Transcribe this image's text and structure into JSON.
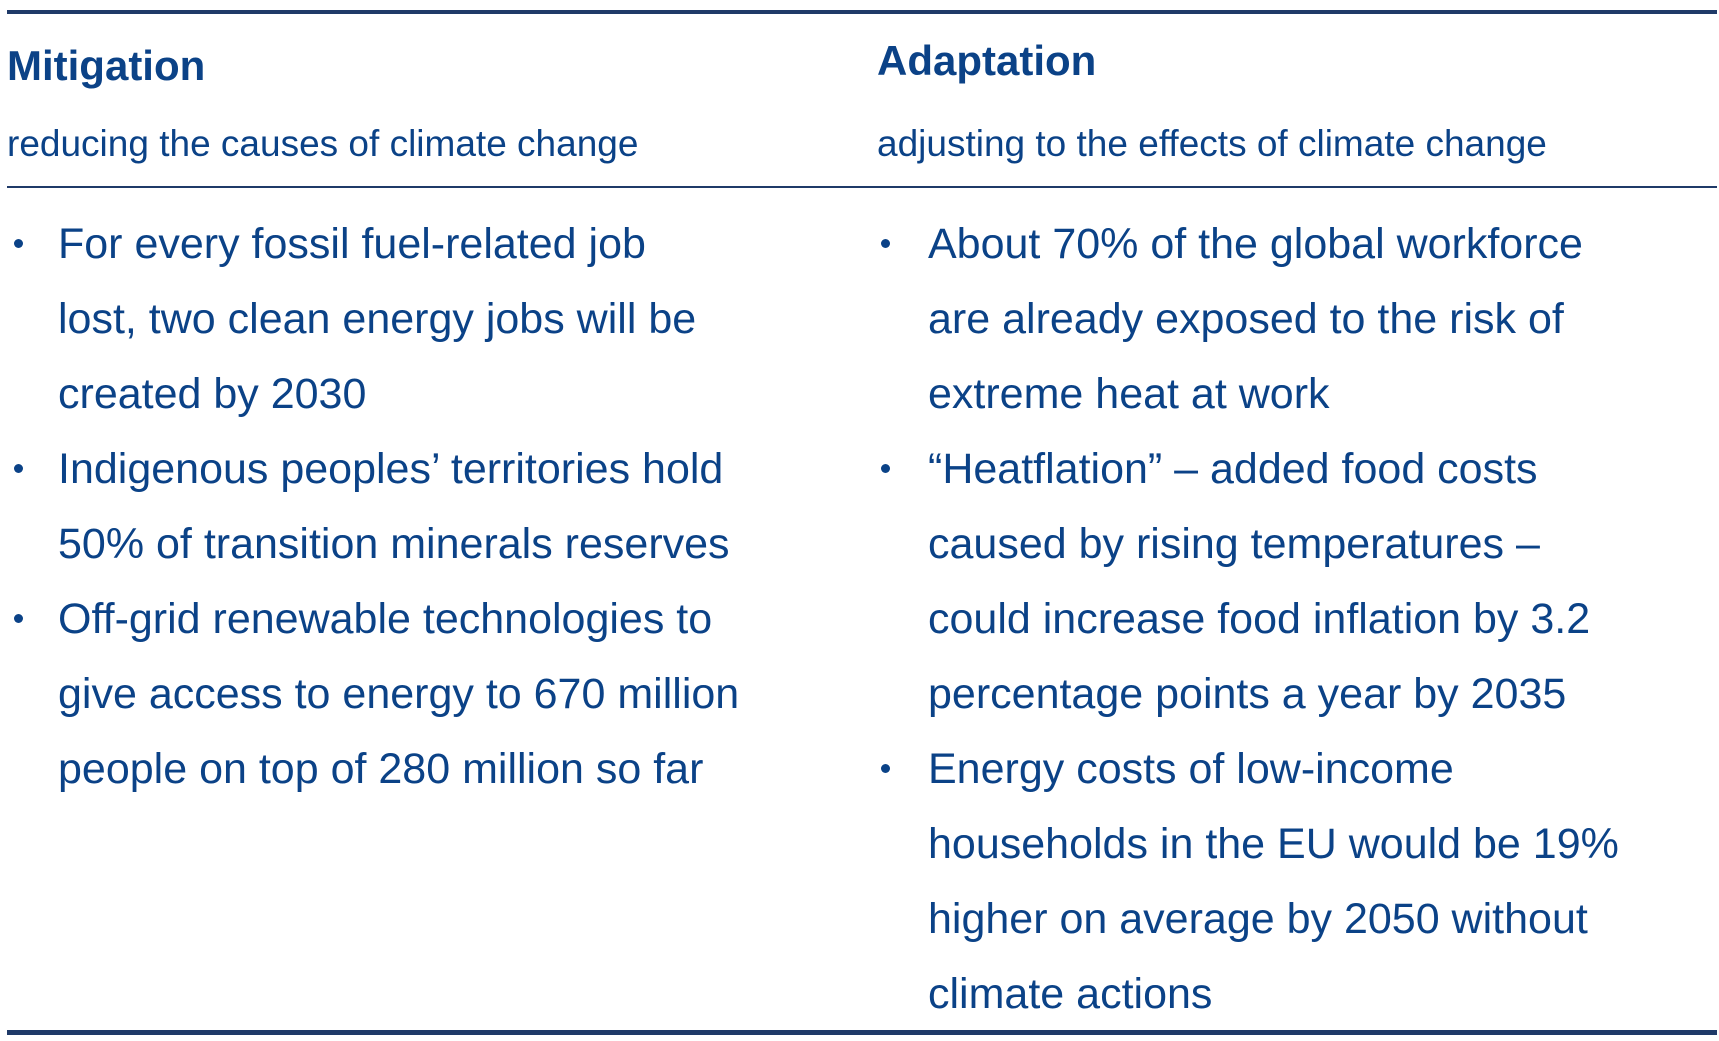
{
  "colors": {
    "text": "#0b4287",
    "rule": "#1f3a68",
    "background": "#ffffff"
  },
  "mitigation": {
    "title": "Mitigation",
    "subtitle": "reducing the causes of climate change",
    "bullets": [
      {
        "lines": [
          "For every fossil fuel-related job",
          "lost, two clean energy jobs will be",
          "created by 2030"
        ]
      },
      {
        "lines": [
          "Indigenous peoples’ territories hold",
          "50% of transition minerals reserves"
        ]
      },
      {
        "lines": [
          "Off-grid renewable technologies to",
          "give access to energy to 670 million",
          "people on top of 280 million so far"
        ]
      }
    ]
  },
  "adaptation": {
    "title": "Adaptation",
    "subtitle": "adjusting to the effects of climate change",
    "bullets": [
      {
        "lines": [
          "About 70% of the global workforce",
          "are already exposed to the risk of",
          "extreme heat at work"
        ]
      },
      {
        "lines": [
          "“Heatflation” – added food costs",
          "caused by rising temperatures –",
          "could increase food inflation by 3.2",
          "percentage points a year by 2035"
        ]
      },
      {
        "lines": [
          "Energy costs of low-income",
          "households in the EU would be 19%",
          "higher on average by 2050 without",
          "climate actions"
        ]
      }
    ]
  }
}
